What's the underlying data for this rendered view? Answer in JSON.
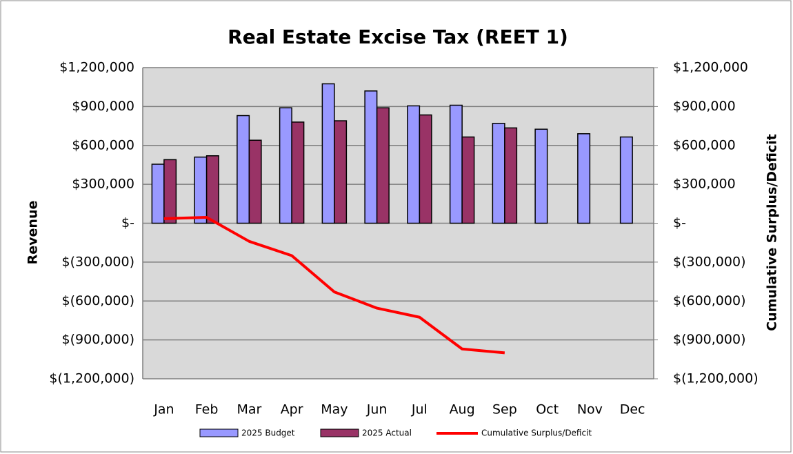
{
  "chart_data": {
    "type": "bar",
    "title": "Real Estate Excise Tax (REET 1)",
    "y_label": "Revenue",
    "y2_label": "Cumulative Surplus/Deficit",
    "categories": [
      "Jan",
      "Feb",
      "Mar",
      "Apr",
      "May",
      "Jun",
      "Jul",
      "Aug",
      "Sep",
      "Oct",
      "Nov",
      "Dec"
    ],
    "series": [
      {
        "name": "2025 Budget",
        "type": "bar",
        "color": "#9999ff",
        "values": [
          455000,
          510000,
          830000,
          890000,
          1075000,
          1020000,
          905000,
          910000,
          770000,
          725000,
          690000,
          665000
        ]
      },
      {
        "name": "2025 Actual",
        "type": "bar",
        "color": "#993366",
        "values": [
          490000,
          520000,
          640000,
          780000,
          790000,
          890000,
          835000,
          665000,
          735000,
          null,
          null,
          null
        ]
      },
      {
        "name": "Cumulative Surplus/Deficit",
        "type": "line",
        "axis": "y2",
        "color": "#ff0000",
        "values": [
          35000,
          45000,
          -140000,
          -250000,
          -530000,
          -655000,
          -725000,
          -970000,
          -1000000,
          null,
          null,
          null
        ]
      }
    ],
    "ylim": [
      -1200000,
      1200000
    ],
    "yticks": [
      {
        "value": -1200000,
        "label": "$(1,200,000)"
      },
      {
        "value": -900000,
        "label": "$(900,000)"
      },
      {
        "value": -600000,
        "label": "$(600,000)"
      },
      {
        "value": -300000,
        "label": "$(300,000)"
      },
      {
        "value": 0,
        "label": "$-"
      },
      {
        "value": 300000,
        "label": "$300,000"
      },
      {
        "value": 600000,
        "label": "$600,000"
      },
      {
        "value": 900000,
        "label": "$900,000"
      },
      {
        "value": 1200000,
        "label": "$1,200,000"
      }
    ],
    "y2lim": [
      -1200000,
      1200000
    ],
    "y2ticks": [
      {
        "value": -1200000,
        "label": "$(1,200,000)"
      },
      {
        "value": -900000,
        "label": "$(900,000)"
      },
      {
        "value": -600000,
        "label": "$(600,000)"
      },
      {
        "value": -300000,
        "label": "$(300,000)"
      },
      {
        "value": 0,
        "label": "$-"
      },
      {
        "value": 300000,
        "label": "$300,000"
      },
      {
        "value": 600000,
        "label": "$600,000"
      },
      {
        "value": 900000,
        "label": "$900,000"
      },
      {
        "value": 1200000,
        "label": "$1,200,000"
      }
    ],
    "grid": true,
    "legend": "bottom"
  }
}
